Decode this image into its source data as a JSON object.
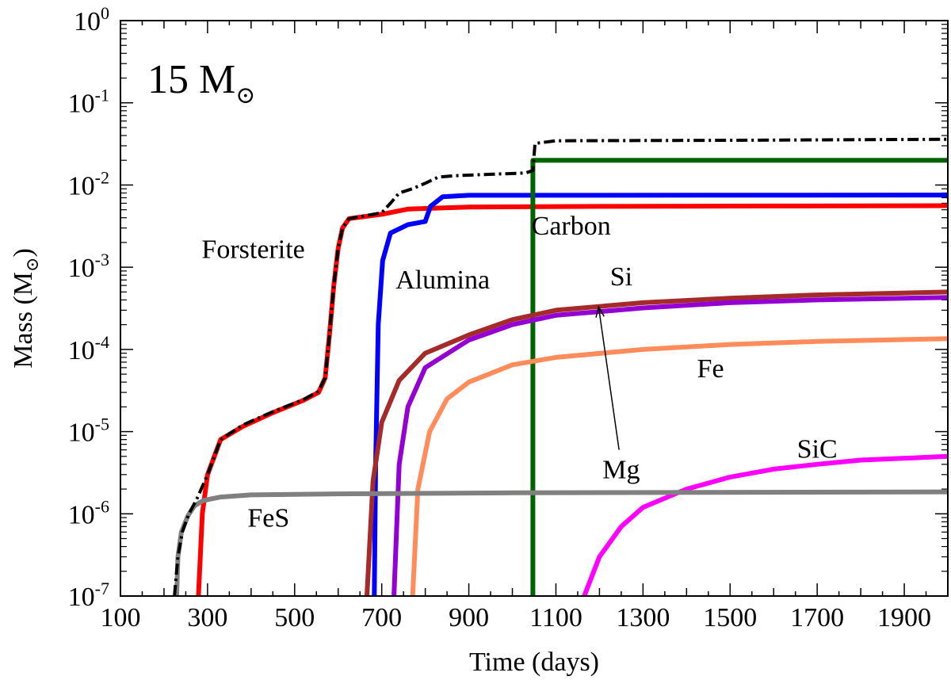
{
  "chart_data": {
    "type": "line",
    "panel_label": {
      "main": "15 M",
      "sub": "⊙"
    },
    "xlabel": "Time (days)",
    "ylabel": {
      "main": "Mass (M",
      "sub": "⊙",
      "close": ")"
    },
    "xlim": [
      100,
      2000
    ],
    "ylim": [
      1e-07,
      1
    ],
    "y_scale": "log",
    "grid": false,
    "x_ticks": [
      100,
      300,
      500,
      700,
      900,
      1100,
      1300,
      1500,
      1700,
      1900
    ],
    "x_tick_labels": [
      "100",
      "300",
      "500",
      "700",
      "900",
      "1100",
      "1300",
      "1500",
      "1700",
      "1900"
    ],
    "y_ticks": [
      {
        "value": 1e-07,
        "base": "10",
        "exp": "-7"
      },
      {
        "value": 1e-06,
        "base": "10",
        "exp": "-6"
      },
      {
        "value": 1e-05,
        "base": "10",
        "exp": "-5"
      },
      {
        "value": 0.0001,
        "base": "10",
        "exp": "-4"
      },
      {
        "value": 0.001,
        "base": "10",
        "exp": "-3"
      },
      {
        "value": 0.01,
        "base": "10",
        "exp": "-2"
      },
      {
        "value": 0.1,
        "base": "10",
        "exp": "-1"
      },
      {
        "value": 1,
        "base": "10",
        "exp": "0"
      }
    ],
    "series": [
      {
        "name": "Forsterite",
        "color": "#ff0000",
        "points": [
          [
            279,
            1e-07
          ],
          [
            288,
            1e-06
          ],
          [
            300,
            3e-06
          ],
          [
            330,
            8e-06
          ],
          [
            380,
            1.15e-05
          ],
          [
            450,
            1.7e-05
          ],
          [
            520,
            2.4e-05
          ],
          [
            555,
            3e-05
          ],
          [
            570,
            4.5e-05
          ],
          [
            580,
            0.00015
          ],
          [
            590,
            0.0006
          ],
          [
            600,
            0.0017
          ],
          [
            610,
            0.003
          ],
          [
            625,
            0.0039
          ],
          [
            700,
            0.0044
          ],
          [
            760,
            0.0051
          ],
          [
            900,
            0.0054
          ],
          [
            1200,
            0.0055
          ],
          [
            1600,
            0.00555
          ],
          [
            2000,
            0.0056
          ]
        ]
      },
      {
        "name": "Alumina",
        "color": "#0000ff",
        "points": [
          [
            683,
            1e-07
          ],
          [
            686,
            4e-06
          ],
          [
            692,
            0.0002
          ],
          [
            702,
            0.0012
          ],
          [
            720,
            0.0026
          ],
          [
            760,
            0.0033
          ],
          [
            800,
            0.0036
          ],
          [
            812,
            0.0055
          ],
          [
            840,
            0.0072
          ],
          [
            900,
            0.0075
          ],
          [
            1200,
            0.0075
          ],
          [
            2000,
            0.00755
          ]
        ]
      },
      {
        "name": "Carbon",
        "color": "#006400",
        "points": [
          [
            1047,
            1e-07
          ],
          [
            1047,
            0.02
          ],
          [
            2000,
            0.02
          ]
        ]
      },
      {
        "name": "Si",
        "color": "#a52a2a",
        "points": [
          [
            666,
            1e-07
          ],
          [
            680,
            2.5e-06
          ],
          [
            700,
            1.3e-05
          ],
          [
            740,
            4.2e-05
          ],
          [
            800,
            9e-05
          ],
          [
            900,
            0.00015
          ],
          [
            1000,
            0.00023
          ],
          [
            1100,
            0.0003
          ],
          [
            1300,
            0.00037
          ],
          [
            1500,
            0.00042
          ],
          [
            1700,
            0.00046
          ],
          [
            2000,
            0.0005
          ]
        ]
      },
      {
        "name": "Mg",
        "color": "#9400d3",
        "points": [
          [
            728,
            1e-07
          ],
          [
            740,
            4e-06
          ],
          [
            760,
            2e-05
          ],
          [
            800,
            6e-05
          ],
          [
            900,
            0.00013
          ],
          [
            1000,
            0.0002
          ],
          [
            1100,
            0.00026
          ],
          [
            1300,
            0.00032
          ],
          [
            1500,
            0.00037
          ],
          [
            1700,
            0.0004
          ],
          [
            2000,
            0.00043
          ]
        ]
      },
      {
        "name": "Fe",
        "color": "#ff8c5a",
        "points": [
          [
            771,
            1e-07
          ],
          [
            783,
            2e-06
          ],
          [
            810,
            1e-05
          ],
          [
            850,
            2.5e-05
          ],
          [
            900,
            4e-05
          ],
          [
            1000,
            6.5e-05
          ],
          [
            1100,
            8e-05
          ],
          [
            1300,
            0.0001
          ],
          [
            1500,
            0.000115
          ],
          [
            1700,
            0.000125
          ],
          [
            2000,
            0.000135
          ]
        ]
      },
      {
        "name": "SiC",
        "color": "#ff00ff",
        "points": [
          [
            1165,
            1e-07
          ],
          [
            1200,
            3e-07
          ],
          [
            1250,
            7e-07
          ],
          [
            1300,
            1.2e-06
          ],
          [
            1400,
            2e-06
          ],
          [
            1500,
            2.8e-06
          ],
          [
            1600,
            3.5e-06
          ],
          [
            1700,
            4e-06
          ],
          [
            1800,
            4.5e-06
          ],
          [
            2000,
            5e-06
          ]
        ]
      },
      {
        "name": "FeS",
        "color": "#808080",
        "points": [
          [
            229,
            1e-07
          ],
          [
            232,
            3e-07
          ],
          [
            240,
            6e-07
          ],
          [
            255,
            9.5e-07
          ],
          [
            270,
            1.25e-06
          ],
          [
            290,
            1.45e-06
          ],
          [
            330,
            1.6e-06
          ],
          [
            400,
            1.7e-06
          ],
          [
            600,
            1.75e-06
          ],
          [
            1000,
            1.8e-06
          ],
          [
            2000,
            1.85e-06
          ]
        ]
      },
      {
        "name": "",
        "color": "#000000",
        "dash": "14 5 3 5",
        "points": [
          [
            224,
            1e-07
          ],
          [
            232,
            3e-07
          ],
          [
            242,
            6e-07
          ],
          [
            257,
            1e-06
          ],
          [
            275,
            1.5e-06
          ],
          [
            300,
            3e-06
          ],
          [
            330,
            8e-06
          ],
          [
            380,
            1.2e-05
          ],
          [
            450,
            1.75e-05
          ],
          [
            520,
            2.45e-05
          ],
          [
            555,
            3.1e-05
          ],
          [
            570,
            4.5e-05
          ],
          [
            580,
            0.00015
          ],
          [
            590,
            0.0006
          ],
          [
            600,
            0.0017
          ],
          [
            610,
            0.003
          ],
          [
            625,
            0.0039
          ],
          [
            700,
            0.0046
          ],
          [
            720,
            0.006
          ],
          [
            740,
            0.008
          ],
          [
            770,
            0.009
          ],
          [
            800,
            0.0105
          ],
          [
            830,
            0.0125
          ],
          [
            870,
            0.013
          ],
          [
            950,
            0.0135
          ],
          [
            1030,
            0.014
          ],
          [
            1047,
            0.015
          ],
          [
            1052,
            0.032
          ],
          [
            1100,
            0.0345
          ],
          [
            1500,
            0.035
          ],
          [
            2000,
            0.036
          ]
        ]
      }
    ],
    "annotations": [
      {
        "text": "Forsterite",
        "x": 405,
        "y": 0.0013
      },
      {
        "text": "Alumina",
        "x": 840,
        "y": 0.00055
      },
      {
        "text": "Carbon",
        "x": 1135,
        "y": 0.0025
      },
      {
        "text": "Si",
        "x": 1250,
        "y": 0.0006
      },
      {
        "text": "Fe",
        "x": 1455,
        "y": 4.6e-05
      },
      {
        "text": "Mg",
        "x": 1250,
        "y": 2.7e-06
      },
      {
        "text": "SiC",
        "x": 1700,
        "y": 4.8e-06
      },
      {
        "text": "FeS",
        "x": 440,
        "y": 7e-07
      }
    ],
    "arrow": {
      "from": [
        1245,
        6e-06
      ],
      "to": [
        1198,
        0.00033
      ]
    }
  }
}
